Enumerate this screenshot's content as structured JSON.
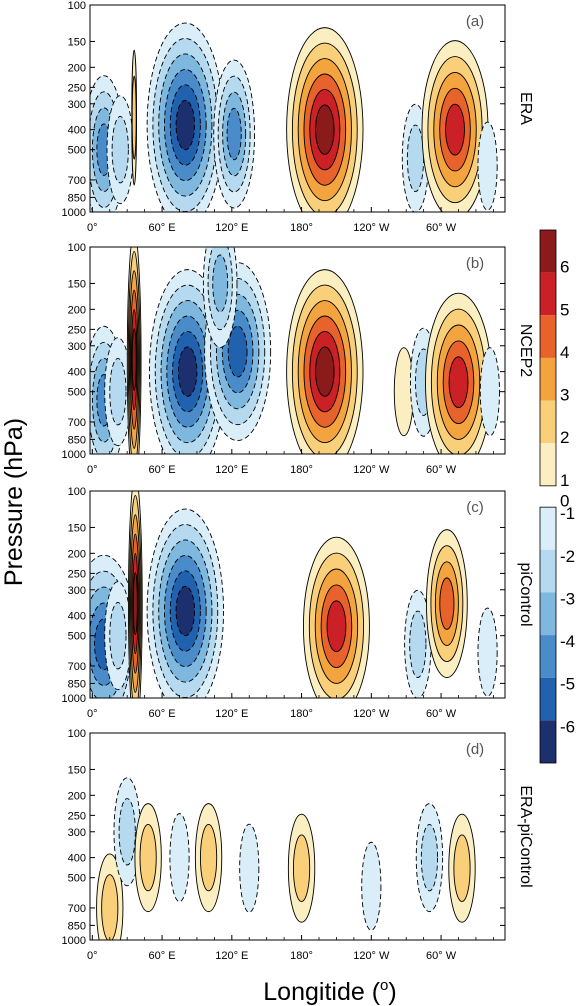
{
  "chart_data": {
    "type": "heatmap",
    "ylabel": "Pressure (hPa)",
    "xlabel_text": "Longitide (",
    "xlabel_unit": "o",
    "xlabel_close": ")",
    "yticks": [
      "100",
      "150",
      "200",
      "250",
      "300",
      "400",
      "500",
      "700",
      "850",
      "1000"
    ],
    "ytick_values": [
      100,
      150,
      200,
      250,
      300,
      400,
      500,
      700,
      850,
      1000
    ],
    "ylim": [
      1000,
      100
    ],
    "y_scale": "log",
    "xticks": [
      "0°",
      "60° E",
      "120° E",
      "180°",
      "120° W",
      "60° W"
    ],
    "xtick_values": [
      0,
      60,
      120,
      180,
      240,
      300
    ],
    "xlim": [
      -2,
      355
    ],
    "colorbar": {
      "labels": [
        "6",
        "5",
        "4",
        "3",
        "2",
        "1",
        "0",
        "-1",
        "-2",
        "-3",
        "-4",
        "-5",
        "-6"
      ],
      "positive_colors": [
        "#fbeec0",
        "#f9cf7a",
        "#f3a43f",
        "#e8622b",
        "#cc2027",
        "#8b1a1a"
      ],
      "negative_colors": [
        "#d9eef8",
        "#b5daf0",
        "#7fb8df",
        "#4a8cca",
        "#2062ae",
        "#1c2f6e"
      ]
    },
    "panels": [
      {
        "id": "a",
        "tag": "(a)",
        "name": "ERA",
        "features": [
          {
            "lon": 10,
            "p": 500,
            "v": -4
          },
          {
            "lon": 24,
            "p": 500,
            "v": -2
          },
          {
            "lon": 36,
            "p": 350,
            "v": 2
          },
          {
            "lon": 80,
            "p": 380,
            "v": -6
          },
          {
            "lon": 122,
            "p": 420,
            "v": -4
          },
          {
            "lon": 200,
            "p": 400,
            "v": 6
          },
          {
            "lon": 278,
            "p": 550,
            "v": -2
          },
          {
            "lon": 312,
            "p": 400,
            "v": 5
          },
          {
            "lon": 340,
            "p": 600,
            "v": -1
          }
        ]
      },
      {
        "id": "b",
        "tag": "(b)",
        "name": "NCEP2",
        "features": [
          {
            "lon": 10,
            "p": 550,
            "v": -4
          },
          {
            "lon": 22,
            "p": 500,
            "v": -2
          },
          {
            "lon": 36,
            "p": 350,
            "v": 6
          },
          {
            "lon": 82,
            "p": 400,
            "v": -6
          },
          {
            "lon": 125,
            "p": 320,
            "v": -5
          },
          {
            "lon": 110,
            "p": 150,
            "v": -3
          },
          {
            "lon": 200,
            "p": 400,
            "v": 6
          },
          {
            "lon": 268,
            "p": 500,
            "v": 1
          },
          {
            "lon": 285,
            "p": 450,
            "v": -2
          },
          {
            "lon": 315,
            "p": 450,
            "v": 5
          },
          {
            "lon": 342,
            "p": 500,
            "v": -1
          }
        ]
      },
      {
        "id": "c",
        "tag": "(c)",
        "name": "piControl",
        "features": [
          {
            "lon": 10,
            "p": 550,
            "v": -5
          },
          {
            "lon": 22,
            "p": 500,
            "v": -2
          },
          {
            "lon": 37,
            "p": 350,
            "v": 6
          },
          {
            "lon": 80,
            "p": 380,
            "v": -6
          },
          {
            "lon": 210,
            "p": 450,
            "v": 5
          },
          {
            "lon": 280,
            "p": 550,
            "v": -2
          },
          {
            "lon": 305,
            "p": 350,
            "v": 4
          },
          {
            "lon": 340,
            "p": 600,
            "v": -1
          }
        ]
      },
      {
        "id": "d",
        "tag": "(d)",
        "name": "ERA-piControl",
        "features": [
          {
            "lon": 15,
            "p": 700,
            "v": 2
          },
          {
            "lon": 30,
            "p": 300,
            "v": -2
          },
          {
            "lon": 48,
            "p": 400,
            "v": 2
          },
          {
            "lon": 75,
            "p": 400,
            "v": -1
          },
          {
            "lon": 100,
            "p": 400,
            "v": 2
          },
          {
            "lon": 135,
            "p": 450,
            "v": -1
          },
          {
            "lon": 180,
            "p": 450,
            "v": 2
          },
          {
            "lon": 240,
            "p": 550,
            "v": -1
          },
          {
            "lon": 290,
            "p": 400,
            "v": -2
          },
          {
            "lon": 318,
            "p": 450,
            "v": 2
          }
        ]
      }
    ]
  }
}
